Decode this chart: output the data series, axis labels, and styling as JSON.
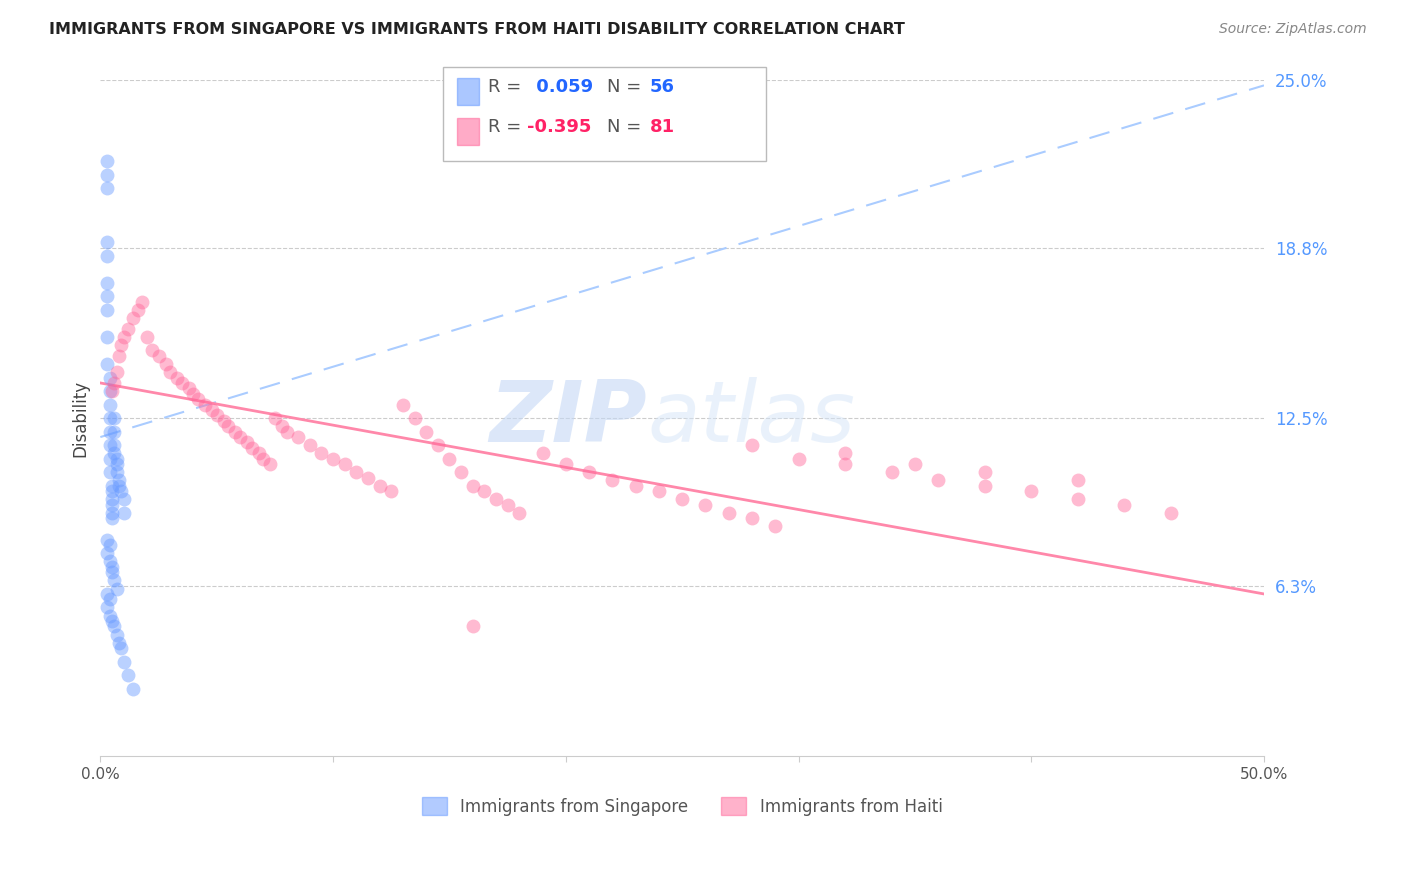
{
  "title": "IMMIGRANTS FROM SINGAPORE VS IMMIGRANTS FROM HAITI DISABILITY CORRELATION CHART",
  "source_text": "Source: ZipAtlas.com",
  "ylabel": "Disability",
  "xlim": [
    0.0,
    0.5
  ],
  "ylim": [
    0.0,
    0.25
  ],
  "ytick_labels": [
    "6.3%",
    "12.5%",
    "18.8%",
    "25.0%"
  ],
  "ytick_positions": [
    0.063,
    0.125,
    0.188,
    0.25
  ],
  "singapore_color": "#6699ff",
  "haiti_color": "#ff6699",
  "singapore_R": 0.059,
  "singapore_N": 56,
  "haiti_R": -0.395,
  "haiti_N": 81,
  "watermark_zip": "ZIP",
  "watermark_atlas": "atlas",
  "singapore_scatter_x": [
    0.003,
    0.003,
    0.003,
    0.003,
    0.003,
    0.003,
    0.003,
    0.003,
    0.003,
    0.003,
    0.004,
    0.004,
    0.004,
    0.004,
    0.004,
    0.004,
    0.004,
    0.004,
    0.005,
    0.005,
    0.005,
    0.005,
    0.005,
    0.005,
    0.006,
    0.006,
    0.006,
    0.006,
    0.007,
    0.007,
    0.007,
    0.008,
    0.008,
    0.009,
    0.01,
    0.01,
    0.003,
    0.003,
    0.004,
    0.004,
    0.005,
    0.005,
    0.006,
    0.007,
    0.003,
    0.003,
    0.004,
    0.004,
    0.005,
    0.006,
    0.007,
    0.008,
    0.009,
    0.01,
    0.012,
    0.014
  ],
  "singapore_scatter_y": [
    0.21,
    0.22,
    0.215,
    0.19,
    0.185,
    0.175,
    0.17,
    0.165,
    0.155,
    0.145,
    0.14,
    0.135,
    0.13,
    0.125,
    0.12,
    0.115,
    0.11,
    0.105,
    0.1,
    0.098,
    0.095,
    0.093,
    0.09,
    0.088,
    0.125,
    0.12,
    0.115,
    0.112,
    0.11,
    0.108,
    0.105,
    0.102,
    0.1,
    0.098,
    0.095,
    0.09,
    0.08,
    0.075,
    0.078,
    0.072,
    0.07,
    0.068,
    0.065,
    0.062,
    0.06,
    0.055,
    0.058,
    0.052,
    0.05,
    0.048,
    0.045,
    0.042,
    0.04,
    0.035,
    0.03,
    0.025
  ],
  "haiti_scatter_x": [
    0.005,
    0.006,
    0.007,
    0.008,
    0.009,
    0.01,
    0.012,
    0.014,
    0.016,
    0.018,
    0.02,
    0.022,
    0.025,
    0.028,
    0.03,
    0.033,
    0.035,
    0.038,
    0.04,
    0.042,
    0.045,
    0.048,
    0.05,
    0.053,
    0.055,
    0.058,
    0.06,
    0.063,
    0.065,
    0.068,
    0.07,
    0.073,
    0.075,
    0.078,
    0.08,
    0.085,
    0.09,
    0.095,
    0.1,
    0.105,
    0.11,
    0.115,
    0.12,
    0.125,
    0.13,
    0.135,
    0.14,
    0.145,
    0.15,
    0.155,
    0.16,
    0.165,
    0.17,
    0.175,
    0.18,
    0.19,
    0.2,
    0.21,
    0.22,
    0.23,
    0.24,
    0.25,
    0.26,
    0.27,
    0.28,
    0.29,
    0.3,
    0.32,
    0.34,
    0.36,
    0.38,
    0.4,
    0.42,
    0.44,
    0.46,
    0.28,
    0.32,
    0.35,
    0.38,
    0.42,
    0.16
  ],
  "haiti_scatter_y": [
    0.135,
    0.138,
    0.142,
    0.148,
    0.152,
    0.155,
    0.158,
    0.162,
    0.165,
    0.168,
    0.155,
    0.15,
    0.148,
    0.145,
    0.142,
    0.14,
    0.138,
    0.136,
    0.134,
    0.132,
    0.13,
    0.128,
    0.126,
    0.124,
    0.122,
    0.12,
    0.118,
    0.116,
    0.114,
    0.112,
    0.11,
    0.108,
    0.125,
    0.122,
    0.12,
    0.118,
    0.115,
    0.112,
    0.11,
    0.108,
    0.105,
    0.103,
    0.1,
    0.098,
    0.13,
    0.125,
    0.12,
    0.115,
    0.11,
    0.105,
    0.1,
    0.098,
    0.095,
    0.093,
    0.09,
    0.112,
    0.108,
    0.105,
    0.102,
    0.1,
    0.098,
    0.095,
    0.093,
    0.09,
    0.088,
    0.085,
    0.11,
    0.108,
    0.105,
    0.102,
    0.1,
    0.098,
    0.095,
    0.093,
    0.09,
    0.115,
    0.112,
    0.108,
    0.105,
    0.102,
    0.048
  ],
  "sg_trend_x": [
    0.0,
    0.5
  ],
  "sg_trend_y": [
    0.118,
    0.248
  ],
  "ht_trend_x": [
    0.0,
    0.5
  ],
  "ht_trend_y": [
    0.138,
    0.06
  ]
}
